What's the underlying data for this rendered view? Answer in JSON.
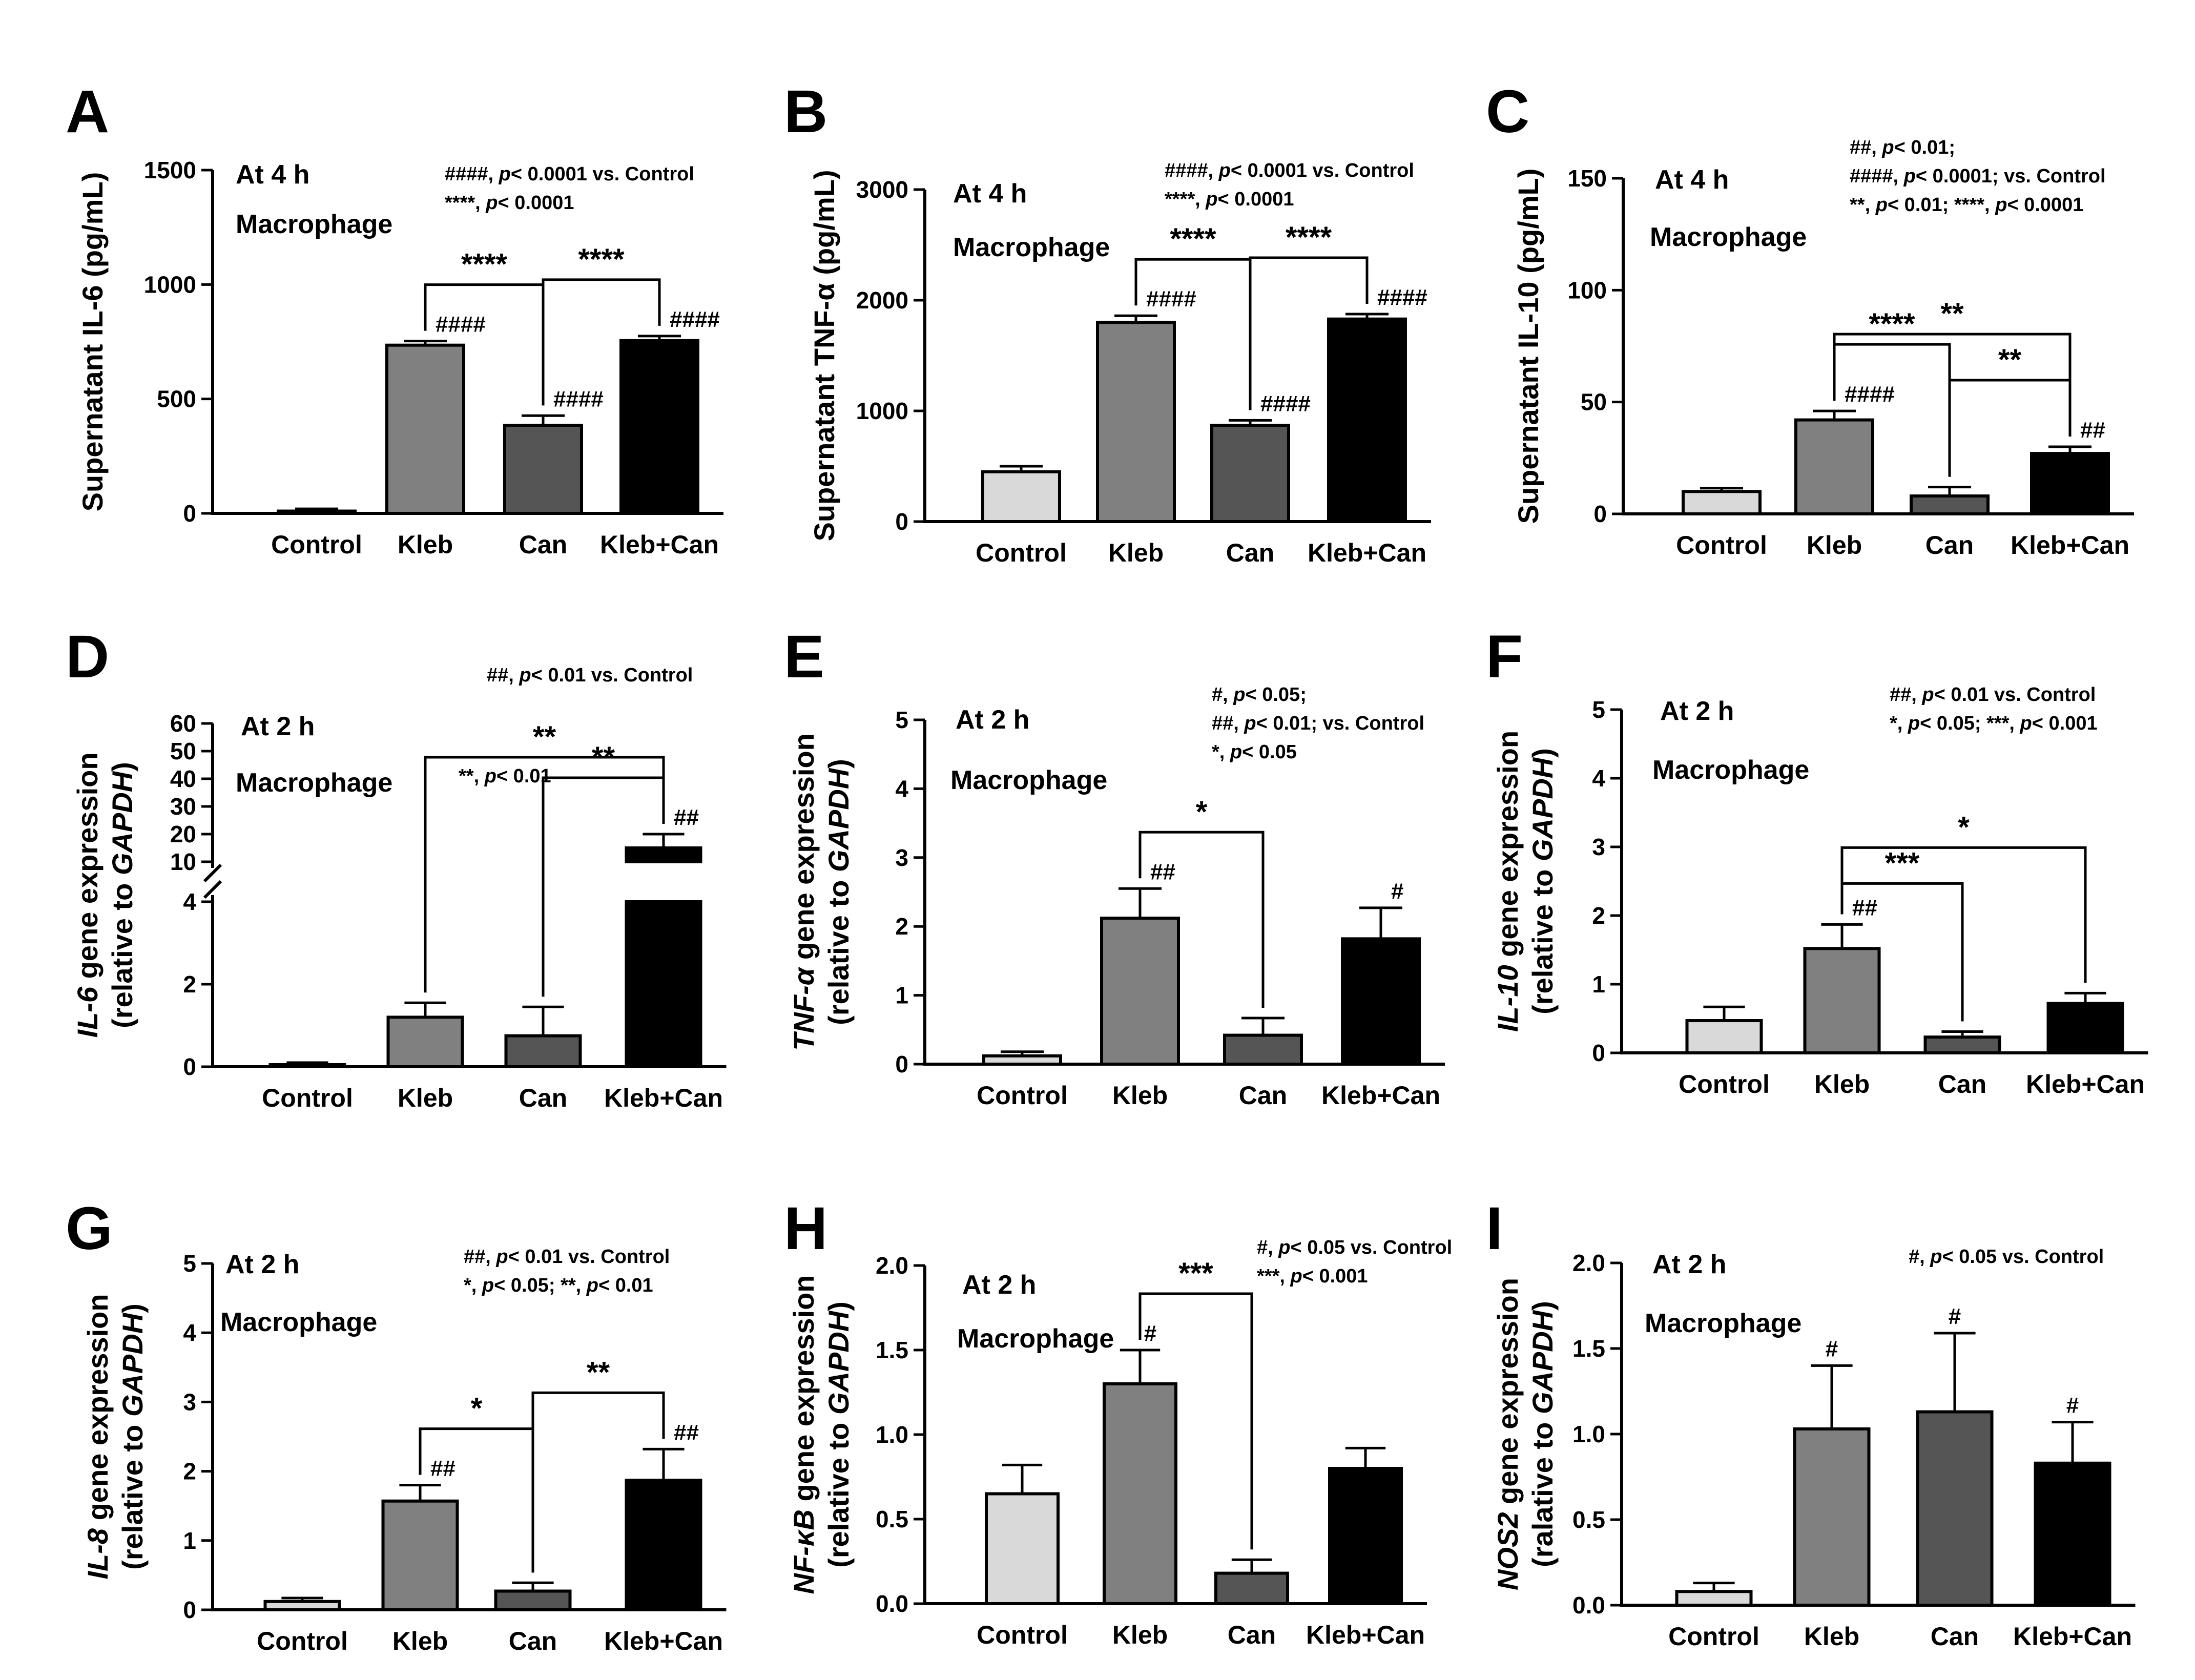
{
  "chart_data": [
    {
      "panel": "A",
      "type": "bar",
      "title": "",
      "ylabel": "Supernatant IL-6 (pg/mL)",
      "xlabel": "",
      "categories": [
        "Control",
        "Kleb",
        "Can",
        "Kleb+Can"
      ],
      "values": [
        10,
        735,
        385,
        755
      ],
      "errors": [
        10,
        18,
        42,
        20
      ],
      "ylim": [
        0,
        1500
      ],
      "yticks": [
        0,
        500,
        1000,
        1500
      ],
      "colors": [
        "#d9d9d9",
        "#808080",
        "#555555",
        "#000000"
      ],
      "annotations": [
        "At 4 h",
        "Macrophage"
      ],
      "stats_note": [
        "####, p< 0.0001 vs. Control",
        "****, p< 0.0001"
      ],
      "group_marks": [
        "",
        "####",
        "####",
        "####"
      ],
      "brackets": [
        {
          "from": 1,
          "to": 2,
          "label": "****"
        },
        {
          "from": 2,
          "to": 3,
          "label": "****"
        }
      ]
    },
    {
      "panel": "B",
      "type": "bar",
      "title": "",
      "ylabel": "Supernatant TNF-α (pg/mL)",
      "xlabel": "",
      "categories": [
        "Control",
        "Kleb",
        "Can",
        "Kleb+Can"
      ],
      "values": [
        450,
        1800,
        870,
        1830
      ],
      "errors": [
        50,
        60,
        45,
        45
      ],
      "ylim": [
        0,
        3000
      ],
      "yticks": [
        0,
        1000,
        2000,
        3000
      ],
      "colors": [
        "#d9d9d9",
        "#808080",
        "#555555",
        "#000000"
      ],
      "annotations": [
        "At 4 h",
        "Macrophage"
      ],
      "stats_note": [
        "####, p< 0.0001 vs. Control",
        "****, p< 0.0001"
      ],
      "group_marks": [
        "",
        "####",
        "####",
        "####"
      ],
      "brackets": [
        {
          "from": 1,
          "to": 2,
          "label": "****"
        },
        {
          "from": 2,
          "to": 3,
          "label": "****"
        }
      ]
    },
    {
      "panel": "C",
      "type": "bar",
      "title": "",
      "ylabel": "Supernatant IL-10 (pg/mL)",
      "xlabel": "",
      "categories": [
        "Control",
        "Kleb",
        "Can",
        "Kleb+Can"
      ],
      "values": [
        10,
        42,
        8,
        27
      ],
      "errors": [
        1.5,
        4,
        4,
        3
      ],
      "ylim": [
        0,
        150
      ],
      "yticks": [
        0,
        50,
        100,
        150
      ],
      "colors": [
        "#d9d9d9",
        "#808080",
        "#555555",
        "#000000"
      ],
      "annotations": [
        "At 4 h",
        "Macrophage"
      ],
      "stats_note": [
        "##, p< 0.01;",
        "####, p< 0.0001; vs. Control",
        "**, p< 0.01; ****, p< 0.0001"
      ],
      "group_marks": [
        "",
        "####",
        "",
        "##"
      ],
      "brackets": [
        {
          "from": 1,
          "to": 3,
          "label": "**"
        },
        {
          "from": 1,
          "to": 2,
          "label": "****"
        },
        {
          "from": 2,
          "to": 3,
          "label": "**"
        }
      ]
    },
    {
      "panel": "D",
      "type": "bar",
      "title": "",
      "ylabel_gene": "IL-6",
      "ylabel_rest": " gene expression",
      "ylabel2_pre": "(relative to ",
      "ylabel2_ital": "GAPDH",
      "ylabel2_post": ")",
      "categories": [
        "Control",
        "Kleb",
        "Can",
        "Kleb+Can"
      ],
      "values": [
        0.05,
        1.2,
        0.75,
        15
      ],
      "errors": [
        0.05,
        0.35,
        0.7,
        5
      ],
      "y_broken_axis": true,
      "yticks_lower": [
        0,
        2,
        4
      ],
      "yticks_upper": [
        10,
        20,
        30,
        40,
        50,
        60
      ],
      "colors": [
        "#d9d9d9",
        "#808080",
        "#555555",
        "#000000"
      ],
      "annotations": [
        "At 2 h",
        "Macrophage"
      ],
      "stats_note": [
        "##, p< 0.01 vs. Control"
      ],
      "inline_note": "**, p< 0.01",
      "group_marks": [
        "",
        "",
        "",
        "##"
      ],
      "brackets": [
        {
          "from": 1,
          "to": 3,
          "label": "**"
        },
        {
          "from": 2,
          "to": 3,
          "label": "**"
        }
      ]
    },
    {
      "panel": "E",
      "type": "bar",
      "title": "",
      "ylabel_gene": "TNF-α",
      "ylabel_rest": " gene expression",
      "ylabel2_pre": "(relative to ",
      "ylabel2_ital": "GAPDH",
      "ylabel2_post": ")",
      "categories": [
        "Control",
        "Kleb",
        "Can",
        "Kleb+Can"
      ],
      "values": [
        0.12,
        2.12,
        0.42,
        1.82
      ],
      "errors": [
        0.06,
        0.43,
        0.25,
        0.45
      ],
      "ylim": [
        0,
        5
      ],
      "yticks": [
        0,
        1,
        2,
        3,
        4,
        5
      ],
      "colors": [
        "#d9d9d9",
        "#808080",
        "#555555",
        "#000000"
      ],
      "annotations": [
        "At 2 h",
        "Macrophage"
      ],
      "stats_note": [
        "#, p< 0.05;",
        "##, p< 0.01; vs. Control",
        "*, p< 0.05"
      ],
      "group_marks": [
        "",
        "##",
        "",
        "#"
      ],
      "brackets": [
        {
          "from": 1,
          "to": 2,
          "label": "*"
        }
      ]
    },
    {
      "panel": "F",
      "type": "bar",
      "title": "",
      "ylabel_gene": "IL-10",
      "ylabel_rest": " gene expression",
      "ylabel2_pre": "(relative to ",
      "ylabel2_ital": "GAPDH",
      "ylabel2_post": ")",
      "categories": [
        "Control",
        "Kleb",
        "Can",
        "Kleb+Can"
      ],
      "values": [
        0.47,
        1.52,
        0.23,
        0.72
      ],
      "errors": [
        0.2,
        0.35,
        0.08,
        0.15
      ],
      "ylim": [
        0,
        5
      ],
      "yticks": [
        0,
        1,
        2,
        3,
        4,
        5
      ],
      "colors": [
        "#d9d9d9",
        "#808080",
        "#555555",
        "#000000"
      ],
      "annotations": [
        "At 2 h",
        "Macrophage"
      ],
      "stats_note": [
        "##, p< 0.01 vs. Control",
        "*, p< 0.05; ***, p< 0.001"
      ],
      "group_marks": [
        "",
        "##",
        "",
        ""
      ],
      "brackets": [
        {
          "from": 1,
          "to": 3,
          "label": "*"
        },
        {
          "from": 1,
          "to": 2,
          "label": "***"
        }
      ]
    },
    {
      "panel": "G",
      "type": "bar",
      "title": "",
      "ylabel_gene": "IL-8",
      "ylabel_rest": " gene expression",
      "ylabel2_pre": "(relative to ",
      "ylabel2_ital": "GAPDH",
      "ylabel2_post": ")",
      "categories": [
        "Control",
        "Kleb",
        "Can",
        "Kleb+Can"
      ],
      "values": [
        0.12,
        1.57,
        0.27,
        1.87
      ],
      "errors": [
        0.05,
        0.23,
        0.12,
        0.45
      ],
      "ylim": [
        0,
        5
      ],
      "yticks": [
        0,
        1,
        2,
        3,
        4,
        5
      ],
      "colors": [
        "#d9d9d9",
        "#808080",
        "#555555",
        "#000000"
      ],
      "annotations": [
        "At 2 h",
        "Macrophage"
      ],
      "stats_note": [
        "##, p< 0.01 vs. Control",
        "*, p< 0.05; **, p< 0.01"
      ],
      "group_marks": [
        "",
        "##",
        "",
        "##"
      ],
      "brackets": [
        {
          "from": 1,
          "to": 2,
          "label": "*"
        },
        {
          "from": 2,
          "to": 3,
          "label": "**"
        }
      ]
    },
    {
      "panel": "H",
      "type": "bar",
      "title": "",
      "ylabel_gene": "NF-κB",
      "ylabel_rest": " gene expression",
      "ylabel2_pre": "(relative to ",
      "ylabel2_ital": "GAPDH",
      "ylabel2_post": ")",
      "categories": [
        "Control",
        "Kleb",
        "Can",
        "Kleb+Can"
      ],
      "values": [
        0.65,
        1.3,
        0.18,
        0.8
      ],
      "errors": [
        0.17,
        0.2,
        0.08,
        0.12
      ],
      "ylim": [
        0,
        2.0
      ],
      "yticks": [
        "0.0",
        "0.5",
        "1.0",
        "1.5",
        "2.0"
      ],
      "colors": [
        "#d9d9d9",
        "#808080",
        "#555555",
        "#000000"
      ],
      "annotations": [
        "At 2 h",
        "Macrophage"
      ],
      "stats_note": [
        "#, p< 0.05 vs. Control",
        "***, p< 0.001"
      ],
      "group_marks": [
        "",
        "#",
        "",
        ""
      ],
      "brackets": [
        {
          "from": 1,
          "to": 2,
          "label": "***"
        }
      ]
    },
    {
      "panel": "I",
      "type": "bar",
      "title": "",
      "ylabel_gene": "NOS2",
      "ylabel_rest": " gene expression",
      "ylabel2_pre": "(ralative to ",
      "ylabel2_ital": "GAPDH",
      "ylabel2_post": ")",
      "categories": [
        "Control",
        "Kleb",
        "Can",
        "Kleb+Can"
      ],
      "values": [
        0.08,
        1.03,
        1.13,
        0.83
      ],
      "errors": [
        0.05,
        0.37,
        0.46,
        0.24
      ],
      "ylim": [
        0,
        2.0
      ],
      "yticks": [
        "0.0",
        "0.5",
        "1.0",
        "1.5",
        "2.0"
      ],
      "colors": [
        "#d9d9d9",
        "#808080",
        "#555555",
        "#000000"
      ],
      "annotations": [
        "At 2 h",
        "Macrophage"
      ],
      "stats_note": [
        "#, p< 0.05 vs. Control"
      ],
      "group_marks": [
        "",
        "#",
        "#",
        "#"
      ],
      "brackets": []
    }
  ]
}
